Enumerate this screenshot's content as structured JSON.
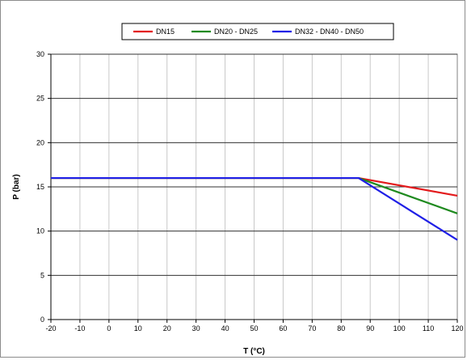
{
  "chart_data": {
    "type": "line",
    "title": "",
    "xlabel": "T (°C)",
    "ylabel": "P (bar)",
    "xlim": [
      -20,
      120
    ],
    "ylim": [
      0,
      30
    ],
    "x_ticks": [
      -20,
      -10,
      0,
      10,
      20,
      30,
      40,
      50,
      60,
      70,
      80,
      90,
      100,
      110,
      120
    ],
    "y_ticks": [
      0,
      5,
      10,
      15,
      20,
      25,
      30
    ],
    "grid": true,
    "legend_position": "top-center",
    "series": [
      {
        "name": "DN15",
        "color": "#e31a1c",
        "points": [
          [
            -20,
            16
          ],
          [
            86,
            16
          ],
          [
            120,
            14
          ]
        ]
      },
      {
        "name": "DN20 - DN25",
        "color": "#1f8a1f",
        "points": [
          [
            -20,
            16
          ],
          [
            86,
            16
          ],
          [
            120,
            12
          ]
        ]
      },
      {
        "name": "DN32 - DN40 - DN50",
        "color": "#1f1fe6",
        "points": [
          [
            -20,
            16
          ],
          [
            86,
            16
          ],
          [
            120,
            9
          ]
        ]
      }
    ]
  }
}
